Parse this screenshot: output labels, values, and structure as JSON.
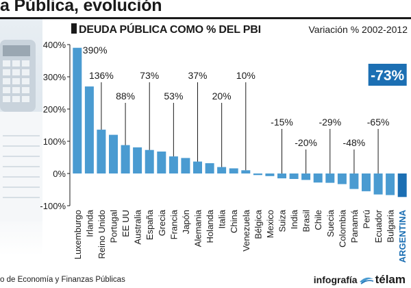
{
  "header": {
    "title": "a Pública, evolución"
  },
  "chart_data": {
    "type": "bar",
    "title": "DEUDA PÚBLICA COMO % DEL PBI",
    "subtitle": "Variación % 2002-2012",
    "categories": [
      "Luxemburgo",
      "Irlanda",
      "Reino Unido",
      "Portugal",
      "EE UU",
      "Australia",
      "España",
      "Grecia",
      "Francia",
      "Japón",
      "Alemania",
      "Holanda",
      "Italia",
      "China",
      "Venezuela",
      "Bélgica",
      "Mexico",
      "Suiza",
      "India",
      "Brasil",
      "Chile",
      "Suecia",
      "Colombia",
      "Panamá",
      "Perú",
      "Ecuador",
      "Bulgaria",
      "ARGENTINA"
    ],
    "values": [
      390,
      270,
      136,
      120,
      88,
      81,
      73,
      68,
      53,
      48,
      37,
      32,
      20,
      16,
      10,
      -5,
      -8,
      -15,
      -17,
      -20,
      -28,
      -29,
      -33,
      -48,
      -55,
      -65,
      -67,
      -73
    ],
    "ylim": [
      -100,
      400
    ],
    "yticks": [
      -100,
      0,
      100,
      200,
      300,
      400
    ],
    "ytick_labels": [
      "-100%",
      "0%",
      "100%",
      "200%",
      "300%",
      "400%"
    ],
    "xlabel": "",
    "ylabel": "",
    "grid": false,
    "bar_color": "#4a9bd1",
    "highlight_color": "#1c6fb3",
    "highlight_category": "ARGENTINA",
    "annotations": [
      {
        "category": "Luxemburgo",
        "text": "390%"
      },
      {
        "category": "Reino Unido",
        "text": "136%"
      },
      {
        "category": "EE UU",
        "text": "88%"
      },
      {
        "category": "España",
        "text": "73%"
      },
      {
        "category": "Francia",
        "text": "53%"
      },
      {
        "category": "Alemania",
        "text": "37%"
      },
      {
        "category": "Italia",
        "text": "20%"
      },
      {
        "category": "Venezuela",
        "text": "10%"
      },
      {
        "category": "Suiza",
        "text": "-15%"
      },
      {
        "category": "Brasil",
        "text": "-20%"
      },
      {
        "category": "Suecia",
        "text": "-29%"
      },
      {
        "category": "Panamá",
        "text": "-48%"
      },
      {
        "category": "Ecuador",
        "text": "-65%"
      },
      {
        "category": "ARGENTINA",
        "text": "-73%",
        "highlight": true
      }
    ]
  },
  "footer": {
    "source": "o de Economía y Finanzas Públicas",
    "credit_label": "infografía",
    "credit_brand": "télam"
  }
}
